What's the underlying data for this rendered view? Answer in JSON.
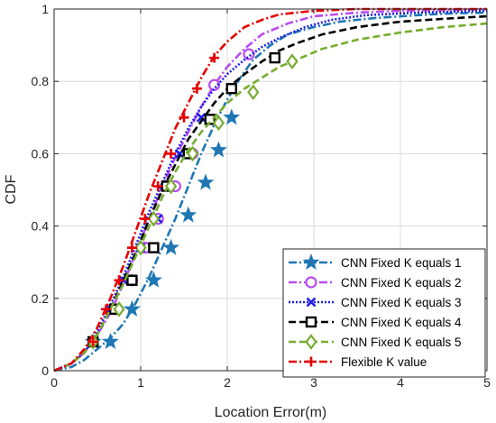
{
  "chart_data": {
    "type": "line",
    "title": "",
    "xlabel": "Location Error(m)",
    "ylabel": "CDF",
    "xlim": [
      0,
      5
    ],
    "ylim": [
      0,
      1
    ],
    "xticks": [
      0,
      1,
      2,
      3,
      4,
      5
    ],
    "yticks": [
      0,
      0.2,
      0.4,
      0.6,
      0.8,
      1
    ],
    "xtick_labels": [
      "0",
      "1",
      "2",
      "3",
      "4",
      "5"
    ],
    "ytick_labels": [
      "0",
      "0.2",
      "0.4",
      "0.6",
      "0.8",
      "1"
    ],
    "grid": true,
    "legend_position": "bottom-right",
    "series": [
      {
        "name": "CNN Fixed K equals 1",
        "color": "#1f77b4",
        "line": "dashdot",
        "marker": "star",
        "x": [
          0,
          0.2,
          0.35,
          0.5,
          0.65,
          0.8,
          0.95,
          1.1,
          1.25,
          1.4,
          1.55,
          1.7,
          1.85,
          2.0,
          2.15,
          2.3,
          2.5,
          2.7,
          3.0,
          3.3,
          3.7,
          4.2,
          4.6,
          5.0
        ],
        "y": [
          0,
          0.01,
          0.03,
          0.06,
          0.09,
          0.13,
          0.19,
          0.26,
          0.34,
          0.42,
          0.51,
          0.6,
          0.68,
          0.75,
          0.81,
          0.86,
          0.9,
          0.93,
          0.95,
          0.965,
          0.975,
          0.983,
          0.988,
          0.99
        ],
        "marker_x": [
          0.45,
          0.65,
          0.9,
          1.15,
          1.35,
          1.55,
          1.75,
          1.9,
          2.05
        ],
        "marker_y": [
          0.08,
          0.08,
          0.17,
          0.25,
          0.34,
          0.43,
          0.52,
          0.61,
          0.7
        ]
      },
      {
        "name": "CNN Fixed K equals 2",
        "color": "#b84cf0",
        "line": "dashdot",
        "marker": "circle",
        "x": [
          0,
          0.2,
          0.35,
          0.5,
          0.65,
          0.8,
          0.95,
          1.1,
          1.25,
          1.4,
          1.55,
          1.7,
          1.85,
          2.0,
          2.2,
          2.4,
          2.7,
          3.0,
          3.5,
          4.0,
          5.0
        ],
        "y": [
          0,
          0.02,
          0.05,
          0.1,
          0.16,
          0.24,
          0.33,
          0.42,
          0.51,
          0.59,
          0.66,
          0.73,
          0.79,
          0.84,
          0.89,
          0.93,
          0.96,
          0.98,
          0.99,
          0.995,
          1.0
        ],
        "marker_x": [
          0.45,
          0.7,
          0.9,
          1.05,
          1.2,
          1.4,
          1.6,
          1.85,
          2.25
        ],
        "marker_y": [
          0.08,
          0.17,
          0.25,
          0.34,
          0.42,
          0.51,
          0.6,
          0.79,
          0.875
        ]
      },
      {
        "name": "CNN Fixed K equals 3",
        "color": "#1f1fe6",
        "line": "dotted",
        "marker": "x",
        "x": [
          0,
          0.2,
          0.35,
          0.5,
          0.65,
          0.8,
          0.95,
          1.1,
          1.25,
          1.4,
          1.55,
          1.7,
          1.85,
          2.0,
          2.2,
          2.4,
          2.6,
          2.9,
          3.2,
          3.6,
          4.2,
          5.0
        ],
        "y": [
          0,
          0.02,
          0.05,
          0.11,
          0.18,
          0.26,
          0.35,
          0.44,
          0.52,
          0.6,
          0.67,
          0.73,
          0.78,
          0.82,
          0.86,
          0.895,
          0.92,
          0.95,
          0.97,
          0.983,
          0.99,
          0.995
        ],
        "marker_x": [
          0.45,
          0.65,
          0.8,
          1.0,
          1.2,
          1.45,
          1.7
        ],
        "marker_y": [
          0.08,
          0.17,
          0.25,
          0.34,
          0.42,
          0.6,
          0.7
        ]
      },
      {
        "name": "CNN Fixed K equals 4",
        "color": "#000000",
        "line": "dashed",
        "marker": "square",
        "x": [
          0,
          0.2,
          0.35,
          0.5,
          0.65,
          0.8,
          0.95,
          1.1,
          1.25,
          1.4,
          1.55,
          1.7,
          1.85,
          2.0,
          2.2,
          2.4,
          2.6,
          2.8,
          3.1,
          3.5,
          4.0,
          4.5,
          5.0
        ],
        "y": [
          0,
          0.02,
          0.05,
          0.1,
          0.17,
          0.25,
          0.33,
          0.42,
          0.5,
          0.57,
          0.64,
          0.69,
          0.74,
          0.78,
          0.82,
          0.855,
          0.885,
          0.905,
          0.93,
          0.95,
          0.965,
          0.973,
          0.98
        ],
        "marker_x": [
          0.45,
          0.7,
          0.9,
          1.15,
          1.3,
          1.55,
          1.8,
          2.05,
          2.55
        ],
        "marker_y": [
          0.08,
          0.17,
          0.25,
          0.34,
          0.51,
          0.6,
          0.695,
          0.78,
          0.865
        ]
      },
      {
        "name": "CNN Fixed K equals 5",
        "color": "#77ac30",
        "line": "dashed",
        "marker": "diamond",
        "x": [
          0,
          0.2,
          0.35,
          0.5,
          0.65,
          0.8,
          0.95,
          1.1,
          1.25,
          1.4,
          1.55,
          1.7,
          1.85,
          2.0,
          2.2,
          2.4,
          2.6,
          2.8,
          3.1,
          3.5,
          4.0,
          4.5,
          5.0
        ],
        "y": [
          0,
          0.02,
          0.05,
          0.1,
          0.17,
          0.24,
          0.32,
          0.4,
          0.48,
          0.55,
          0.61,
          0.66,
          0.7,
          0.74,
          0.78,
          0.81,
          0.84,
          0.86,
          0.89,
          0.915,
          0.935,
          0.95,
          0.96
        ],
        "marker_x": [
          0.45,
          0.75,
          1.0,
          1.15,
          1.35,
          1.6,
          1.9,
          2.3,
          2.75
        ],
        "marker_y": [
          0.08,
          0.17,
          0.34,
          0.42,
          0.51,
          0.6,
          0.685,
          0.77,
          0.855
        ]
      },
      {
        "name": "Flexible K value",
        "color": "#e60000",
        "line": "dashdot",
        "marker": "plus",
        "x": [
          0,
          0.2,
          0.35,
          0.5,
          0.65,
          0.8,
          0.95,
          1.1,
          1.25,
          1.4,
          1.55,
          1.7,
          1.85,
          2.0,
          2.2,
          2.4,
          2.6,
          3.0,
          3.5,
          5.0
        ],
        "y": [
          0,
          0.02,
          0.06,
          0.12,
          0.2,
          0.29,
          0.39,
          0.49,
          0.58,
          0.67,
          0.74,
          0.81,
          0.87,
          0.91,
          0.95,
          0.97,
          0.985,
          0.995,
          1.0,
          1.0
        ],
        "marker_x": [
          0.45,
          0.6,
          0.75,
          0.9,
          1.05,
          1.2,
          1.35,
          1.5,
          1.65,
          1.85
        ],
        "marker_y": [
          0.08,
          0.17,
          0.25,
          0.34,
          0.42,
          0.51,
          0.6,
          0.7,
          0.78,
          0.865
        ]
      }
    ]
  }
}
